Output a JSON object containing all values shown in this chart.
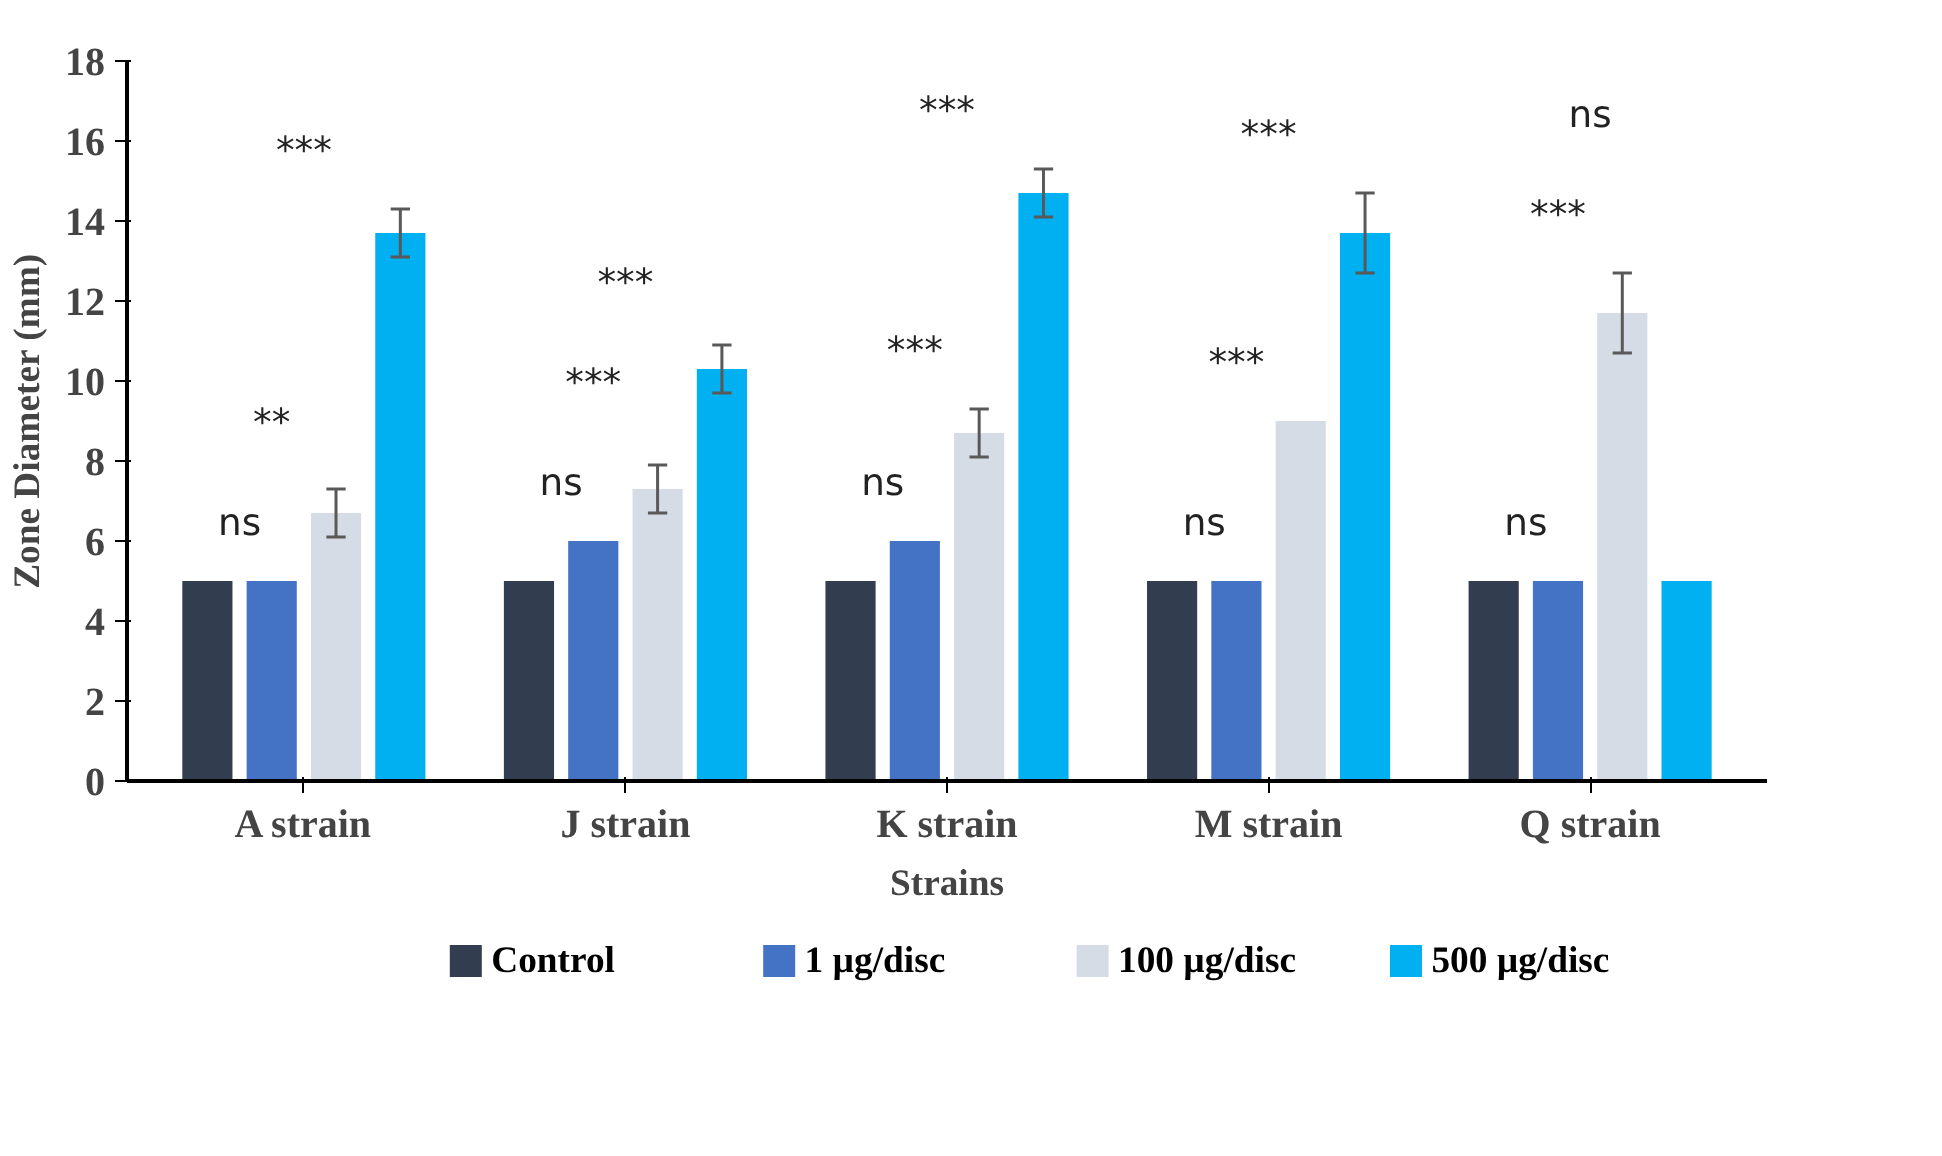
{
  "chart_data": {
    "type": "bar",
    "xlabel": "Strains",
    "ylabel": "Zone Diameter (mm)",
    "categories": [
      "A strain",
      "J strain",
      "K strain",
      "M strain",
      "Q strain"
    ],
    "ylim": [
      0,
      18
    ],
    "yticks": [
      0,
      2,
      4,
      6,
      8,
      10,
      12,
      14,
      16,
      18
    ],
    "grid": false,
    "legend": "bottom",
    "series": [
      {
        "name": "Control",
        "color": "#323d4f",
        "values": [
          5,
          5,
          5,
          5,
          5
        ]
      },
      {
        "name": "1 µg/disc",
        "color": "#4472c4",
        "values": [
          5,
          6,
          6,
          5,
          5
        ]
      },
      {
        "name": "100 µg/disc",
        "color": "#d6dce5",
        "values": [
          6.7,
          7.3,
          8.7,
          9,
          11.7
        ],
        "errors": [
          0.6,
          0.6,
          0.6,
          null,
          1.0
        ]
      },
      {
        "name": "500 µg/disc",
        "color": "#00b0f0",
        "values": [
          13.7,
          10.3,
          14.7,
          13.7,
          5
        ],
        "errors": [
          0.6,
          0.6,
          0.6,
          1.0,
          null
        ]
      }
    ],
    "annotations": [
      "ns",
      "**",
      "***",
      "ns",
      "***",
      "***",
      "ns",
      "***",
      "***",
      "ns",
      "***",
      "***",
      "ns",
      "***",
      "ns"
    ]
  }
}
